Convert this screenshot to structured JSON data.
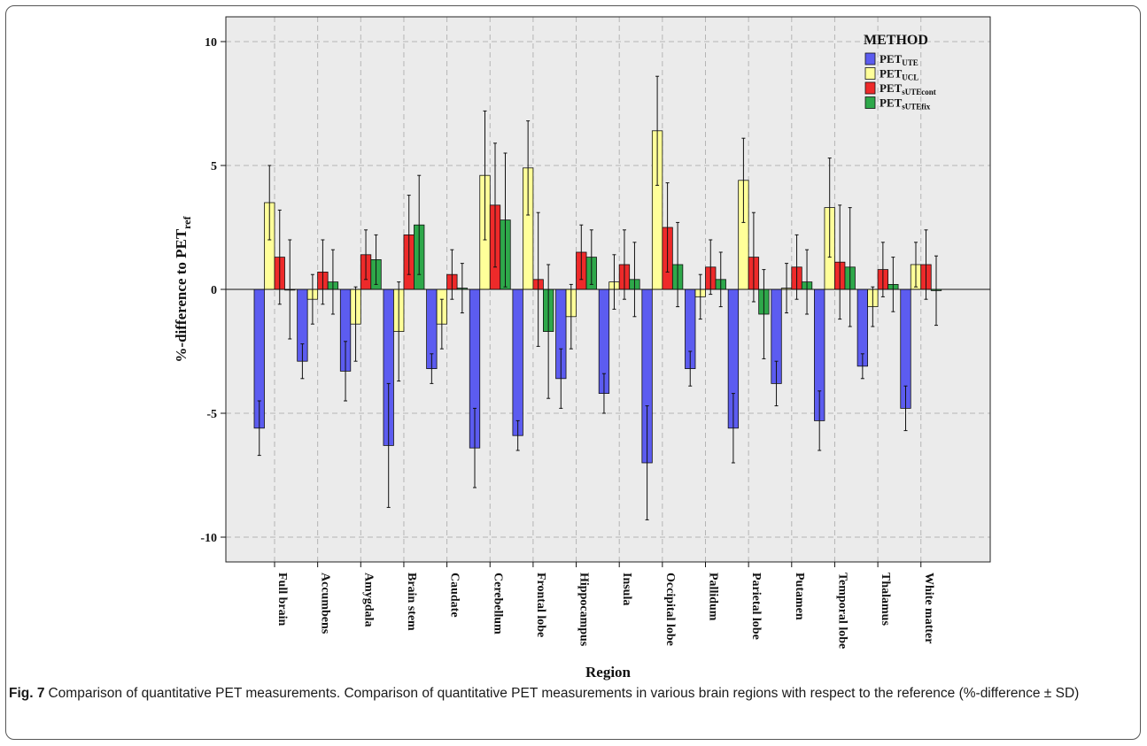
{
  "caption": {
    "label": "Fig. 7",
    "text": "Comparison of quantitative PET measurements. Comparison of quantitative PET measurements in various brain regions with respect to the reference (%-difference ± SD)"
  },
  "colors": {
    "plot_background": "#ebebeb",
    "series": [
      "#5c5cf0",
      "#ffff99",
      "#ee2a2a",
      "#2ea84a"
    ]
  },
  "chart_data": {
    "type": "bar",
    "title": "",
    "xlabel": "Region",
    "ylabel": {
      "main": "%-difference to PET",
      "sub": "ref"
    },
    "ylim": [
      -11,
      11
    ],
    "yticks": [
      -10,
      -5,
      0,
      5,
      10
    ],
    "grid": true,
    "legend_position": "top-right",
    "legend_title": "METHOD",
    "categories": [
      "Full brain",
      "Accumbens",
      "Amygdala",
      "Brain stem",
      "Caudate",
      "Cerebellum",
      "Frontal lobe",
      "Hippocampus",
      "Insula",
      "Occipital lobe",
      "Pallidum",
      "Parietal lobe",
      "Putamen",
      "Temporal lobe",
      "Thalamus",
      "White matter"
    ],
    "series": [
      {
        "name": {
          "main": "PET",
          "sub": "UTE"
        },
        "values": [
          -5.6,
          -2.9,
          -3.3,
          -6.3,
          -3.2,
          -6.4,
          -5.9,
          -3.6,
          -4.2,
          -7.0,
          -3.2,
          -5.6,
          -3.8,
          -5.3,
          -3.1,
          -4.8
        ],
        "sd": [
          1.1,
          0.7,
          1.2,
          2.5,
          0.6,
          1.6,
          0.6,
          1.2,
          0.8,
          2.3,
          0.7,
          1.4,
          0.9,
          1.2,
          0.5,
          0.9
        ]
      },
      {
        "name": {
          "main": "PET",
          "sub": "UCL"
        },
        "values": [
          3.5,
          -0.4,
          -1.4,
          -1.7,
          -1.4,
          4.6,
          4.9,
          -1.1,
          0.3,
          6.4,
          -0.3,
          4.4,
          0.05,
          3.3,
          -0.7,
          1.0
        ],
        "sd": [
          1.5,
          1.0,
          1.5,
          2.0,
          1.0,
          2.6,
          1.9,
          1.3,
          1.1,
          2.2,
          0.9,
          1.7,
          1.0,
          2.0,
          0.8,
          0.9
        ]
      },
      {
        "name": {
          "main": "PET",
          "sub": "sUTEcont"
        },
        "values": [
          1.3,
          0.7,
          1.4,
          2.2,
          0.6,
          3.4,
          0.4,
          1.5,
          1.0,
          2.5,
          0.9,
          1.3,
          0.9,
          1.1,
          0.8,
          1.0
        ],
        "sd": [
          1.9,
          1.3,
          1.0,
          1.6,
          1.0,
          2.5,
          2.7,
          1.1,
          1.4,
          1.8,
          1.1,
          1.8,
          1.3,
          2.3,
          1.1,
          1.4
        ]
      },
      {
        "name": {
          "main": "PET",
          "sub": "sUTEfix"
        },
        "values": [
          0.0,
          0.3,
          1.2,
          2.6,
          0.05,
          2.8,
          -1.7,
          1.3,
          0.4,
          1.0,
          0.4,
          -1.0,
          0.3,
          0.9,
          0.2,
          -0.05
        ],
        "sd": [
          2.0,
          1.3,
          1.0,
          2.0,
          1.0,
          2.7,
          2.7,
          1.1,
          1.5,
          1.7,
          1.1,
          1.8,
          1.3,
          2.4,
          1.1,
          1.4
        ]
      }
    ]
  }
}
